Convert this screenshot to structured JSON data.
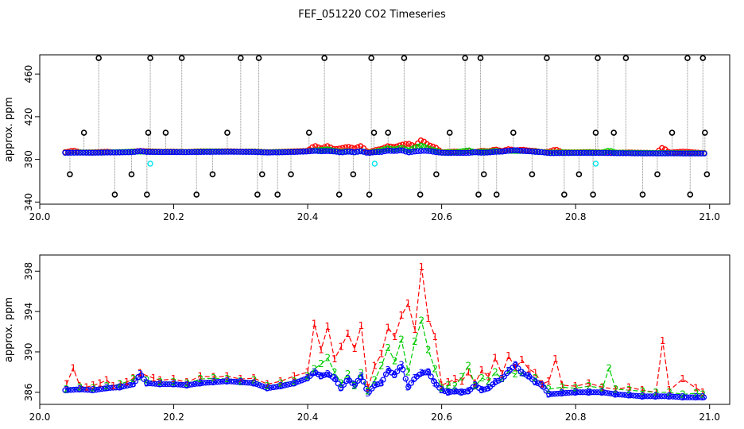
{
  "figure": {
    "title": "FEF_051220  CO2 Timeseries"
  },
  "chart_data": [
    {
      "type": "scatter",
      "ylabel": "approx. ppm",
      "xlim": [
        20.0,
        21.03
      ],
      "ylim": [
        338,
        478
      ],
      "xticks": [
        20.0,
        20.2,
        20.4,
        20.6,
        20.8,
        21.0
      ],
      "xtick_labels": [
        "20.0",
        "20.2",
        "20.4",
        "20.6",
        "20.8",
        "21.0"
      ],
      "yticks": [
        340,
        380,
        420,
        460
      ],
      "ytick_labels": [
        "340",
        "380",
        "420",
        "460"
      ],
      "grid": false,
      "colors": {
        "series1": "#ff0000",
        "series2": "#00cc00",
        "series3": "#0000ff",
        "calibration": "#00e5ee",
        "spikes": "#000000",
        "connector": "#888888"
      },
      "spike_x": [
        20.045,
        20.066,
        20.088,
        20.112,
        20.137,
        20.16,
        20.162,
        20.165,
        20.188,
        20.212,
        20.234,
        20.258,
        20.28,
        20.3,
        20.325,
        20.327,
        20.332,
        20.355,
        20.375,
        20.402,
        20.425,
        20.447,
        20.468,
        20.492,
        20.495,
        20.499,
        20.52,
        20.544,
        20.568,
        20.592,
        20.612,
        20.635,
        20.655,
        20.658,
        20.663,
        20.682,
        20.707,
        20.735,
        20.757,
        20.783,
        20.805,
        20.826,
        20.83,
        20.833,
        20.857,
        20.875,
        20.9,
        20.922,
        20.944,
        20.967,
        20.971,
        20.99,
        20.993,
        20.996
      ],
      "spike_y": [
        366,
        405,
        475,
        347,
        366,
        347,
        405,
        475,
        405,
        475,
        347,
        366,
        405,
        475,
        347,
        475,
        366,
        347,
        366,
        405,
        475,
        347,
        366,
        347,
        475,
        405,
        405,
        475,
        347,
        366,
        405,
        475,
        347,
        475,
        366,
        347,
        405,
        366,
        475,
        347,
        366,
        347,
        405,
        475,
        405,
        475,
        347,
        366,
        405,
        475,
        347,
        475,
        405,
        366
      ],
      "calibration_x": [
        20.165,
        20.5,
        20.83
      ],
      "calibration_y": [
        376,
        376,
        376
      ]
    },
    {
      "type": "line",
      "ylabel": "approx. ppm",
      "xlim": [
        20.0,
        21.03
      ],
      "ylim": [
        384.8,
        399.6
      ],
      "xticks": [
        20.0,
        20.2,
        20.4,
        20.6,
        20.8,
        21.0
      ],
      "xtick_labels": [
        "20.0",
        "20.2",
        "20.4",
        "20.6",
        "20.8",
        "21.0"
      ],
      "yticks": [
        386,
        390,
        394,
        398
      ],
      "ytick_labels": [
        "386",
        "390",
        "394",
        "398"
      ],
      "grid": false,
      "point_labels": [
        "1",
        "2",
        "3"
      ],
      "series": [
        {
          "color": "#ff0000",
          "x": [
            20.04,
            20.05,
            20.06,
            20.07,
            20.08,
            20.09,
            20.1,
            20.11,
            20.12,
            20.13,
            20.14,
            20.15,
            20.17,
            20.18,
            20.2,
            20.22,
            20.24,
            20.26,
            20.28,
            20.3,
            20.32,
            20.34,
            20.36,
            20.38,
            20.4,
            20.41,
            20.42,
            20.43,
            20.44,
            20.45,
            20.46,
            20.47,
            20.48,
            20.49,
            20.5,
            20.51,
            20.52,
            20.53,
            20.54,
            20.55,
            20.56,
            20.57,
            20.58,
            20.59,
            20.6,
            20.61,
            20.62,
            20.63,
            20.64,
            20.65,
            20.66,
            20.67,
            20.68,
            20.69,
            20.7,
            20.71,
            20.72,
            20.73,
            20.74,
            20.75,
            20.76,
            20.77,
            20.78,
            20.8,
            20.82,
            20.84,
            20.86,
            20.88,
            20.9,
            20.92,
            20.93,
            20.94,
            20.96,
            20.98,
            20.99
          ],
          "values": [
            386.8,
            388.4,
            386.6,
            386.5,
            386.7,
            386.9,
            387.2,
            386.6,
            386.8,
            387.0,
            387.4,
            387.9,
            387.4,
            387.2,
            387.3,
            387.0,
            387.6,
            387.5,
            387.6,
            387.3,
            387.4,
            386.8,
            387.1,
            387.6,
            388.0,
            392.8,
            390.2,
            392.5,
            389.3,
            390.5,
            391.8,
            390.3,
            392.6,
            386.4,
            388.6,
            389.8,
            392.4,
            391.5,
            393.6,
            394.8,
            392.2,
            398.4,
            393.3,
            391.5,
            386.7,
            387.0,
            387.3,
            387.1,
            388.0,
            386.9,
            388.2,
            387.5,
            389.4,
            387.8,
            389.6,
            388.4,
            389.2,
            388.3,
            387.9,
            386.8,
            387.1,
            389.3,
            386.7,
            386.6,
            386.9,
            386.5,
            386.3,
            386.5,
            386.2,
            386.0,
            391.1,
            386.2,
            387.3,
            386.4,
            386.0
          ]
        },
        {
          "color": "#00cc00",
          "x": [
            20.04,
            20.06,
            20.08,
            20.1,
            20.12,
            20.14,
            20.16,
            20.18,
            20.2,
            20.22,
            20.24,
            20.26,
            20.28,
            20.3,
            20.32,
            20.34,
            20.36,
            20.38,
            20.4,
            20.41,
            20.42,
            20.43,
            20.44,
            20.45,
            20.46,
            20.47,
            20.48,
            20.49,
            20.5,
            20.51,
            20.52,
            20.53,
            20.54,
            20.55,
            20.56,
            20.57,
            20.58,
            20.59,
            20.6,
            20.61,
            20.62,
            20.63,
            20.64,
            20.65,
            20.66,
            20.67,
            20.68,
            20.69,
            20.7,
            20.71,
            20.72,
            20.74,
            20.76,
            20.78,
            20.8,
            20.82,
            20.84,
            20.85,
            20.86,
            20.88,
            20.9,
            20.92,
            20.94,
            20.96,
            20.98,
            20.99
          ],
          "values": [
            386.3,
            386.5,
            386.4,
            386.6,
            386.8,
            387.3,
            387.2,
            387.0,
            387.0,
            386.9,
            387.3,
            387.4,
            387.3,
            387.1,
            387.2,
            386.6,
            386.9,
            387.1,
            387.6,
            388.3,
            388.8,
            389.4,
            388.0,
            386.9,
            387.8,
            386.6,
            387.9,
            386.1,
            387.2,
            388.6,
            390.4,
            389.1,
            391.2,
            388.0,
            391.0,
            393.1,
            390.2,
            388.3,
            386.4,
            386.7,
            386.6,
            387.5,
            388.6,
            386.6,
            387.4,
            387.1,
            388.0,
            387.3,
            388.1,
            387.8,
            387.9,
            387.4,
            386.3,
            386.5,
            386.4,
            386.6,
            386.4,
            388.4,
            386.3,
            386.2,
            386.1,
            386.0,
            386.0,
            385.8,
            385.9,
            385.8
          ]
        },
        {
          "color": "#0000ff",
          "x": [
            20.04,
            20.06,
            20.08,
            20.1,
            20.12,
            20.14,
            20.15,
            20.16,
            20.18,
            20.2,
            20.22,
            20.24,
            20.26,
            20.28,
            20.3,
            20.32,
            20.34,
            20.36,
            20.38,
            20.4,
            20.41,
            20.42,
            20.43,
            20.44,
            20.45,
            20.46,
            20.47,
            20.48,
            20.49,
            20.5,
            20.51,
            20.52,
            20.53,
            20.54,
            20.55,
            20.56,
            20.57,
            20.58,
            20.59,
            20.6,
            20.61,
            20.62,
            20.63,
            20.64,
            20.65,
            20.66,
            20.67,
            20.68,
            20.69,
            20.7,
            20.71,
            20.72,
            20.73,
            20.74,
            20.75,
            20.76,
            20.78,
            20.8,
            20.82,
            20.84,
            20.86,
            20.88,
            20.9,
            20.92,
            20.94,
            20.96,
            20.98,
            20.99
          ],
          "values": [
            386.2,
            386.3,
            386.2,
            386.4,
            386.5,
            386.8,
            387.8,
            386.9,
            386.8,
            386.8,
            386.7,
            386.9,
            387.0,
            387.1,
            387.0,
            386.9,
            386.4,
            386.6,
            386.9,
            387.4,
            388.0,
            387.6,
            387.8,
            387.4,
            386.4,
            387.3,
            386.7,
            387.6,
            385.9,
            386.7,
            386.9,
            388.2,
            387.7,
            388.7,
            386.5,
            387.4,
            387.9,
            388.0,
            386.9,
            386.2,
            386.0,
            386.1,
            386.0,
            386.1,
            386.7,
            386.2,
            386.4,
            387.0,
            387.3,
            388.1,
            388.7,
            387.9,
            387.6,
            387.0,
            386.7,
            385.8,
            385.9,
            386.0,
            386.0,
            386.0,
            385.8,
            385.7,
            385.6,
            385.6,
            385.6,
            385.5,
            385.5,
            385.5
          ]
        }
      ]
    }
  ]
}
